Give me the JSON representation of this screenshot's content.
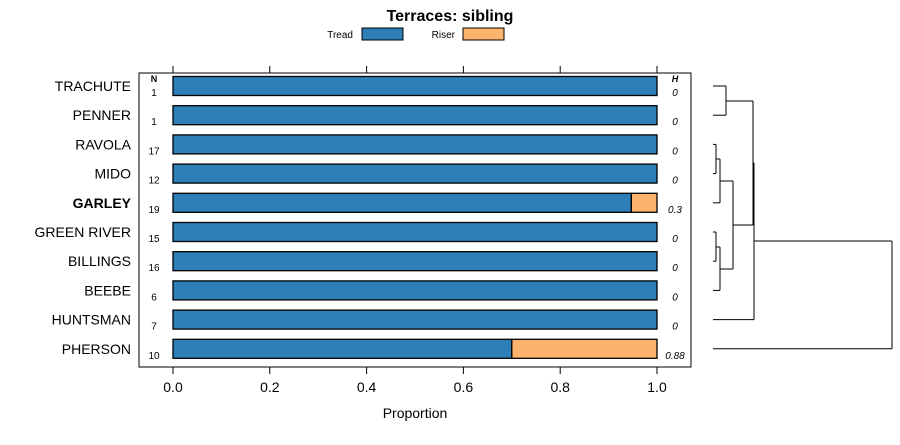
{
  "chart_data": {
    "type": "bar",
    "stacked": true,
    "orientation": "horizontal",
    "title": "Terraces: sibling",
    "xlabel": "Proportion",
    "xlim": [
      0,
      1
    ],
    "x_ticks": [
      "0.0",
      "0.2",
      "0.4",
      "0.6",
      "0.8",
      "1.0"
    ],
    "x_tick_values": [
      0,
      0.2,
      0.4,
      0.6,
      0.8,
      1.0
    ],
    "n_header": "N",
    "h_header": "H",
    "highlighted_category": "GARLEY",
    "categories": [
      "TRACHUTE",
      "PENNER",
      "RAVOLA",
      "MIDO",
      "GARLEY",
      "GREEN RIVER",
      "BILLINGS",
      "BEEBE",
      "HUNTSMAN",
      "PHERSON"
    ],
    "n_values": [
      "1",
      "1",
      "17",
      "12",
      "19",
      "15",
      "16",
      "6",
      "7",
      "10"
    ],
    "h_values": [
      "0",
      "0",
      "0",
      "0",
      "0.3",
      "0",
      "0",
      "0",
      "0",
      "0.88"
    ],
    "series": [
      {
        "name": "Tread",
        "color": "#2e7fb8",
        "values": [
          1,
          1,
          1,
          1,
          0.947,
          1,
          1,
          1,
          1,
          0.7
        ]
      },
      {
        "name": "Riser",
        "color": "#fdb36b",
        "values": [
          0,
          0,
          0,
          0,
          0.053,
          0,
          0,
          0,
          0,
          0.3
        ]
      }
    ],
    "legend_position": "top",
    "grid": false,
    "dendrogram": true
  }
}
